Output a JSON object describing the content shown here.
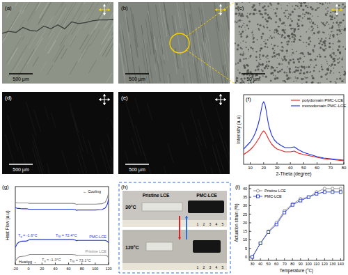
{
  "panels": {
    "a": {
      "label": "(a)",
      "scale_bar": "500 μm"
    },
    "b": {
      "label": "(b)",
      "scale_bar": "500 μm"
    },
    "c": {
      "label": "(c)",
      "scale_bar": "50 μm"
    },
    "d": {
      "label": "(d)",
      "scale_bar": "500 μm"
    },
    "e": {
      "label": "(e)",
      "scale_bar": "500 μm"
    },
    "h": {
      "label": "(h)",
      "samples": [
        "Pristine LCE",
        "PMC-LCE"
      ],
      "temperatures": [
        "30°C",
        "120°C"
      ],
      "ruler": [
        1,
        2,
        3,
        4,
        5
      ]
    }
  },
  "chart_data": [
    {
      "type": "line",
      "title": "(f)",
      "x_label": "2-Theta (degree)",
      "y_label": "Intensity (a.u)",
      "x": [
        5,
        8,
        10,
        12,
        14,
        16,
        17,
        18,
        19,
        20,
        21,
        22,
        23,
        24,
        26,
        28,
        30,
        33,
        36,
        40,
        43,
        46,
        50,
        55,
        60,
        65,
        70,
        75,
        80
      ],
      "series": [
        {
          "name": "polydomain PMC-LCE",
          "color": "#e62020",
          "values": [
            14,
            18,
            21,
            25,
            30,
            36,
            39,
            43,
            46,
            48,
            46,
            43,
            39,
            35,
            29,
            25,
            22,
            20,
            18,
            18,
            19,
            16,
            14,
            12,
            10,
            8,
            7,
            6,
            5
          ]
        },
        {
          "name": "monodomain PMC-LCE",
          "color": "#1d2fe0",
          "values": [
            22,
            28,
            32,
            38,
            46,
            58,
            66,
            76,
            86,
            90,
            86,
            76,
            64,
            54,
            42,
            35,
            31,
            27,
            24,
            24,
            25,
            21,
            17,
            14,
            11,
            9,
            8,
            7,
            6
          ]
        }
      ],
      "xlim": [
        5,
        80
      ],
      "xticks": [
        10,
        20,
        30,
        40,
        50,
        60,
        70,
        80
      ],
      "ylim": [
        0,
        100
      ],
      "tick_labels": "x",
      "legend": "upper right"
    },
    {
      "type": "line",
      "title": "(g)",
      "y_label": "Heat Flow (a.u)",
      "x": [
        -20,
        -17,
        -14,
        -10,
        -5,
        -2,
        0,
        2,
        5,
        10,
        20,
        30,
        40,
        50,
        60,
        65,
        70,
        72,
        74,
        76,
        80,
        90,
        100,
        110,
        115,
        118,
        120
      ],
      "series": [
        {
          "color": "#8c8c8c",
          "values": [
            80,
            79,
            79,
            79,
            79,
            79,
            78.5,
            78.5,
            78.5,
            78.5,
            78.5,
            78.5,
            78.5,
            78.5,
            78.5,
            78.5,
            78,
            77,
            77.5,
            77.5,
            77.5,
            77.5,
            77.5,
            78,
            80,
            85,
            92
          ]
        },
        {
          "color": "#1f35d8",
          "values": [
            73,
            72,
            72,
            71.5,
            71.5,
            71.5,
            71,
            71,
            71,
            71,
            71,
            71,
            71,
            71,
            71,
            71,
            70.5,
            69.5,
            70,
            70,
            70,
            70,
            70,
            70.5,
            72.5,
            77,
            84
          ]
        },
        {
          "name": "PMC-LCE",
          "color": "#1f35d8",
          "values": [
            22,
            27,
            29,
            30,
            30,
            30.5,
            31.5,
            32,
            32,
            32,
            32,
            32,
            32,
            32,
            32,
            32,
            31.5,
            30.5,
            31,
            31,
            31,
            31,
            31,
            31,
            31,
            30,
            28
          ]
        },
        {
          "name": "Pristine LCE",
          "color": "#8c8c8c",
          "values": [
            4,
            8,
            10,
            10.5,
            11,
            11.5,
            12.5,
            13,
            13,
            13,
            13,
            13,
            13,
            13,
            13,
            13,
            12.5,
            11.5,
            12,
            12,
            12,
            12,
            12,
            12,
            12,
            11,
            9
          ]
        }
      ],
      "annotations": [
        "← Cooling",
        "Tg = -1.6°C",
        "TNI = 72.4°C",
        "Tg = -1.3°C",
        "TNI = 73.1°C",
        "Heating →"
      ],
      "xlim": [
        -20,
        120
      ],
      "xticks": [
        -20,
        0,
        20,
        40,
        60,
        80,
        100,
        120
      ],
      "ylim": [
        0,
        100
      ],
      "tick_labels": "x"
    },
    {
      "type": "line",
      "title": "(i)",
      "x_label": "Temperature (°C)",
      "y_label": "Actuation strain (%)",
      "x": [
        30,
        40,
        50,
        60,
        70,
        80,
        90,
        100,
        110,
        120,
        130,
        140
      ],
      "series": [
        {
          "name": "Pristine LCE",
          "color": "#8a8a8a",
          "marker": "circle",
          "values": [
            0,
            8,
            15,
            20,
            27,
            31,
            34,
            35,
            38,
            40,
            40,
            40
          ]
        },
        {
          "name": "PMC-LCE",
          "color": "#2438d0",
          "marker": "square",
          "values": [
            0,
            8,
            14.5,
            19,
            26,
            30.5,
            33,
            35,
            37,
            38,
            38,
            38
          ]
        }
      ],
      "xlim": [
        26,
        144
      ],
      "xticks": [
        30,
        40,
        50,
        60,
        70,
        80,
        90,
        100,
        110,
        120,
        130,
        140
      ],
      "ylim": [
        -2,
        42
      ],
      "yticks": [
        0,
        5,
        10,
        15,
        20,
        25,
        30,
        35,
        40
      ],
      "legend": "upper left"
    }
  ]
}
